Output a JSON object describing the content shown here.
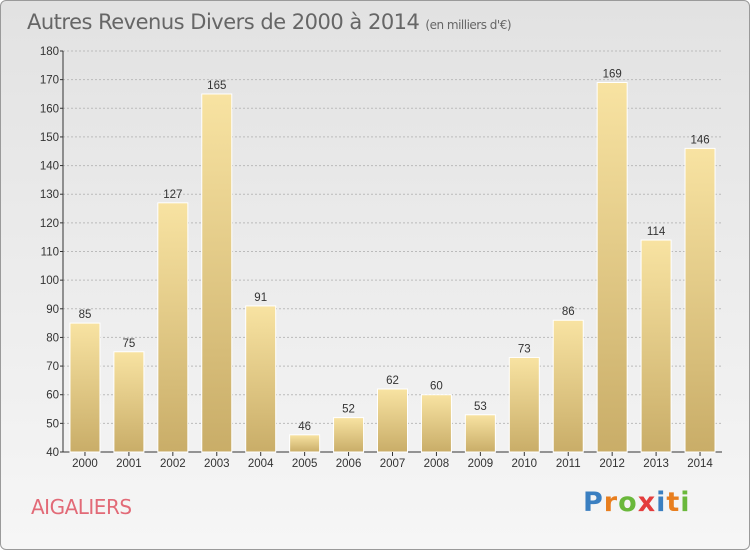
{
  "title": "Autres Revenus Divers de 2000 à 2014",
  "subtitle": "(en milliers d'€)",
  "commune": "AIGALIERS",
  "logo": {
    "text": "Proxiti",
    "letters": [
      "P",
      "r",
      "o",
      "x",
      "i",
      "t",
      "i"
    ],
    "colors": [
      "#3a7fc1",
      "#e87e1e",
      "#6ab83b",
      "#e43d3d",
      "#3a7fc1",
      "#e87e1e",
      "#6ab83b"
    ]
  },
  "colors": {
    "bar_top": "#f8e3a2",
    "bar_bottom": "#c9ad68",
    "title": "#666666",
    "commune": "#e26a77",
    "grid": "#bbbbbb"
  },
  "chart_data": {
    "type": "bar",
    "categories": [
      "2000",
      "2001",
      "2002",
      "2003",
      "2004",
      "2005",
      "2006",
      "2007",
      "2008",
      "2009",
      "2010",
      "2011",
      "2012",
      "2013",
      "2014"
    ],
    "values": [
      85,
      75,
      127,
      165,
      91,
      46,
      52,
      62,
      60,
      53,
      73,
      86,
      169,
      114,
      146
    ],
    "title": "Autres Revenus Divers de 2000 à 2014",
    "subtitle": "(en milliers d'€)",
    "xlabel": "",
    "ylabel": "",
    "ylim": [
      40,
      180
    ],
    "yticks": [
      40,
      50,
      60,
      70,
      80,
      90,
      100,
      110,
      120,
      130,
      140,
      150,
      160,
      170,
      180
    ],
    "grid": true,
    "data_labels": true
  }
}
